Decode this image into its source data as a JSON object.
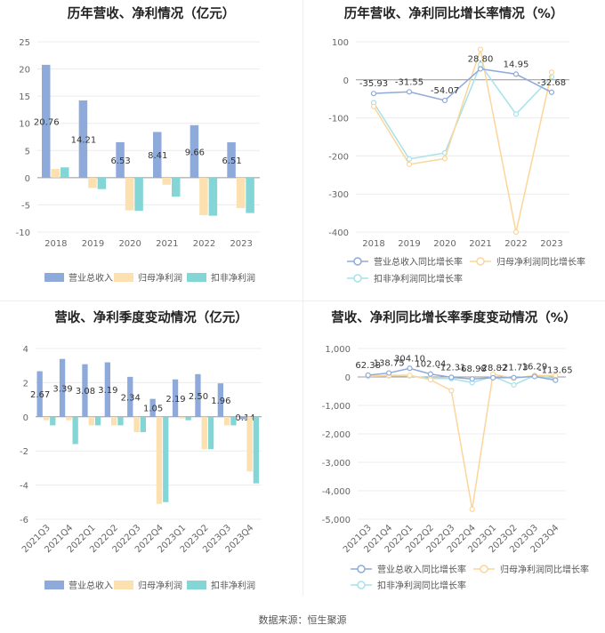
{
  "footer": "数据来源：恒生聚源",
  "colors": {
    "revenue": "#8eaadb",
    "parent": "#fde0b0",
    "deduct": "#84d6d6",
    "l_rev": "#8eaadb",
    "l_par": "#fcd59a",
    "l_ded": "#a6e2ea"
  },
  "chart_data": [
    {
      "type": "bar",
      "title": "历年营收、净利情况（亿元）",
      "categories": [
        "2018",
        "2019",
        "2020",
        "2021",
        "2022",
        "2023"
      ],
      "ylim": [
        -10,
        25
      ],
      "yticks": [
        "-10",
        "-5",
        "0",
        "5",
        "10",
        "15",
        "20",
        "25"
      ],
      "series": [
        {
          "name": "营业总收入",
          "values": [
            20.76,
            14.21,
            6.53,
            8.41,
            9.66,
            6.51
          ],
          "labels": [
            "20.76",
            "14.21",
            "6.53",
            "8.41",
            "9.66",
            "6.51"
          ]
        },
        {
          "name": "归母净利润",
          "values": [
            1.6,
            -1.9,
            -6.0,
            -1.3,
            -6.9,
            -5.6
          ]
        },
        {
          "name": "扣非净利润",
          "values": [
            1.9,
            -2.1,
            -6.1,
            -3.5,
            -7.0,
            -6.5
          ]
        }
      ],
      "legend_position": "bottom"
    },
    {
      "type": "line",
      "title": "历年营收、净利同比增长率情况（%）",
      "categories": [
        "2018",
        "2019",
        "2020",
        "2021",
        "2022",
        "2023"
      ],
      "ylim": [
        -400,
        100
      ],
      "yticks": [
        "-400",
        "-300",
        "-200",
        "-100",
        "0",
        "100"
      ],
      "series": [
        {
          "name": "营业总收入同比增长率",
          "values": [
            -35.93,
            -31.55,
            -54.07,
            28.8,
            14.95,
            -32.68
          ],
          "labels": [
            "-35.93",
            "-31.55",
            "-54.07",
            "28.80",
            "14.95",
            "-32.68"
          ]
        },
        {
          "name": "归母净利润同比增长率",
          "values": [
            -70,
            -222,
            -207,
            80,
            -400,
            20
          ]
        },
        {
          "name": "扣非净利润同比增长率",
          "values": [
            -60,
            -208,
            -192,
            40,
            -90,
            8
          ]
        }
      ],
      "legend_position": "bottom"
    },
    {
      "type": "bar",
      "title": "营收、净利季度变动情况（亿元）",
      "categories": [
        "2021Q3",
        "2021Q4",
        "2022Q1",
        "2022Q2",
        "2022Q3",
        "2022Q4",
        "2023Q1",
        "2023Q2",
        "2023Q3",
        "2023Q4"
      ],
      "ylim": [
        -6,
        4
      ],
      "yticks": [
        "-6",
        "-4",
        "-2",
        "0",
        "2",
        "4"
      ],
      "series": [
        {
          "name": "营业总收入",
          "values": [
            2.67,
            3.39,
            3.08,
            3.19,
            2.34,
            1.05,
            2.19,
            2.5,
            1.96,
            -0.14
          ],
          "labels": [
            "2.67",
            "3.39",
            "3.08",
            "3.19",
            "2.34",
            "1.05",
            "2.19",
            "2.50",
            "1.96",
            "-0.14"
          ]
        },
        {
          "name": "归母净利润",
          "values": [
            -0.2,
            -0.2,
            -0.5,
            -0.5,
            -0.9,
            -5.1,
            -0.1,
            -1.9,
            -0.5,
            -3.2
          ]
        },
        {
          "name": "扣非净利润",
          "values": [
            -0.5,
            -1.6,
            -0.5,
            -0.5,
            -0.9,
            -5.0,
            -0.2,
            -1.9,
            -0.5,
            -3.9
          ]
        }
      ],
      "legend_position": "bottom"
    },
    {
      "type": "line",
      "title": "营收、净利同比增长率季度变动情况（%）",
      "categories": [
        "2021Q3",
        "2021Q4",
        "2022Q1",
        "2022Q2",
        "2022Q3",
        "2022Q4",
        "2023Q1",
        "2023Q2",
        "2023Q3",
        "2023Q4"
      ],
      "ylim": [
        -5000,
        1000
      ],
      "yticks": [
        "-5,000",
        "-4,000",
        "-3,000",
        "-2,000",
        "-1,000",
        "0",
        "1,000"
      ],
      "series": [
        {
          "name": "营业总收入同比增长率",
          "values": [
            62.38,
            138.75,
            304.1,
            102.04,
            -12.31,
            -68.98,
            -28.82,
            -21.73,
            16.29,
            -113.65
          ],
          "labels": [
            "62.38",
            "138.75",
            "304.10",
            "102.04",
            "-12.31",
            "-68.98",
            "-28.82",
            "-21.73",
            "16.29",
            "-113.65"
          ]
        },
        {
          "name": "归母净利润同比增长率",
          "values": [
            30,
            60,
            60,
            -100,
            -480,
            -4650,
            100,
            -50,
            50,
            50
          ]
        },
        {
          "name": "扣非净利润同比增长率",
          "values": [
            20,
            40,
            40,
            -50,
            -60,
            -200,
            20,
            -280,
            50,
            -50
          ]
        }
      ],
      "legend_position": "bottom"
    }
  ]
}
